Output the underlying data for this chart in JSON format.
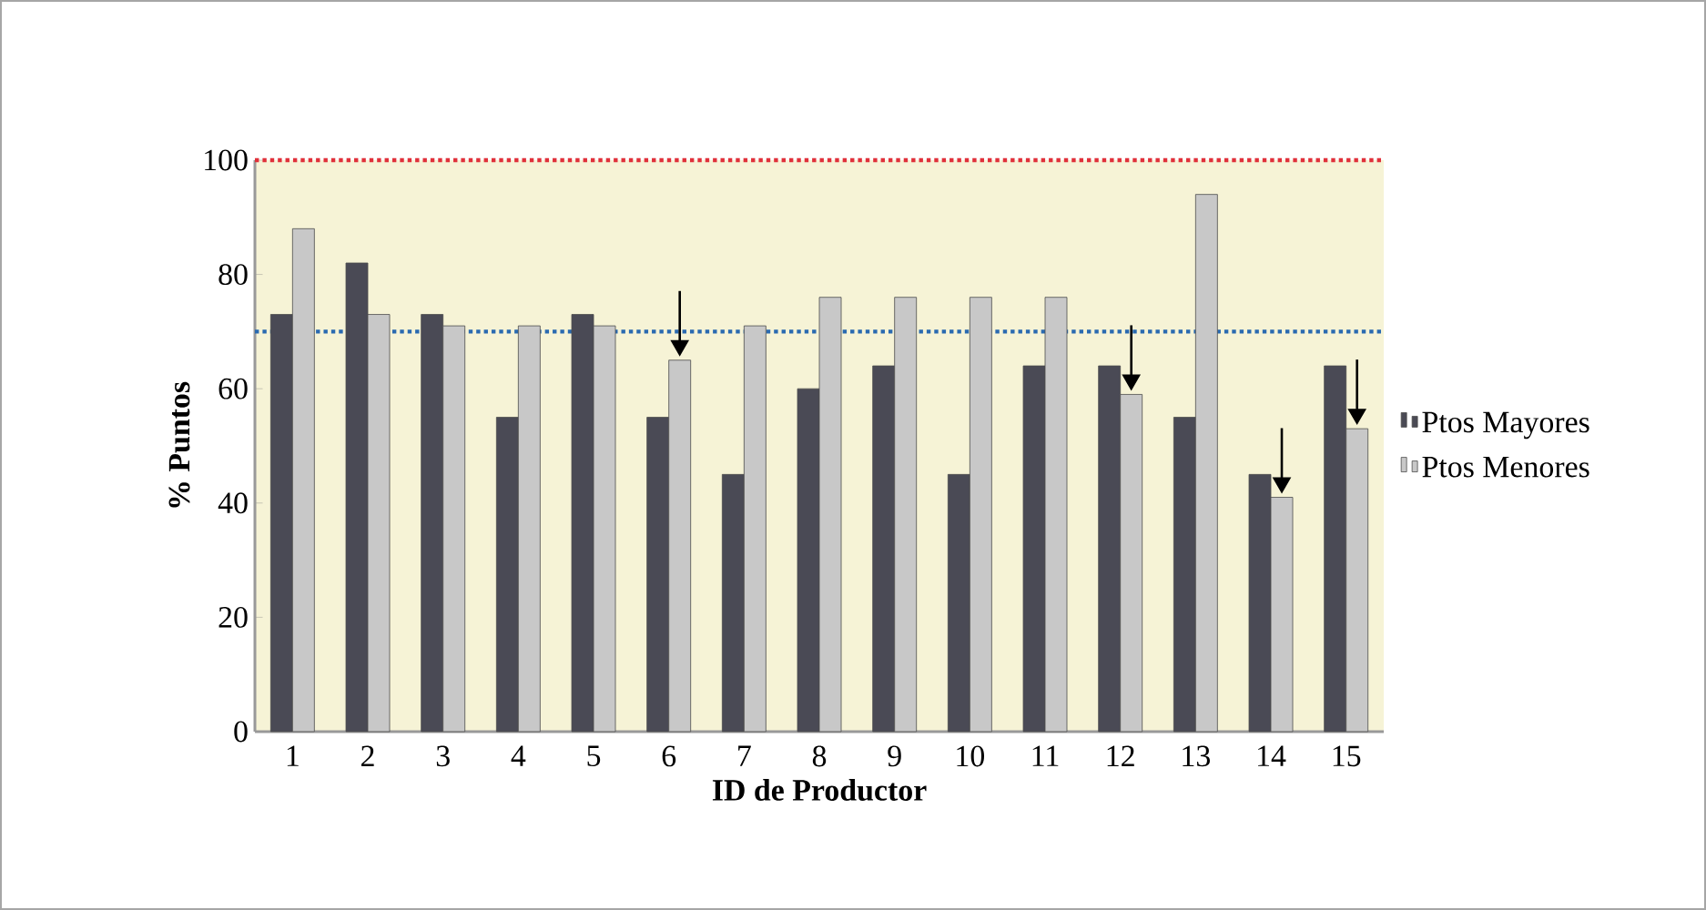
{
  "chart_data": {
    "type": "bar",
    "xlabel": "ID de Productor",
    "ylabel": "% Puntos",
    "categories": [
      "1",
      "2",
      "3",
      "4",
      "5",
      "6",
      "7",
      "8",
      "9",
      "10",
      "11",
      "12",
      "13",
      "14",
      "15"
    ],
    "series": [
      {
        "name": "Ptos Mayores",
        "color": "#4a4a55",
        "values": [
          73,
          82,
          73,
          55,
          73,
          55,
          45,
          60,
          64,
          45,
          64,
          64,
          55,
          45,
          64
        ]
      },
      {
        "name": "Ptos Menores",
        "color": "#c8c8c8",
        "values": [
          88,
          73,
          71,
          71,
          71,
          65,
          71,
          76,
          76,
          76,
          76,
          59,
          94,
          41,
          53
        ]
      }
    ],
    "ylim": [
      0,
      100
    ],
    "yticks": [
      0,
      20,
      40,
      60,
      80,
      100
    ],
    "ref_lines": [
      {
        "axis": "y",
        "value": 100,
        "color": "#e0303a",
        "line_style": "dotted"
      },
      {
        "axis": "y",
        "value": 70,
        "color": "#2a6ab0",
        "line_style": "dotted"
      }
    ],
    "grid": false,
    "legend": "right"
  }
}
